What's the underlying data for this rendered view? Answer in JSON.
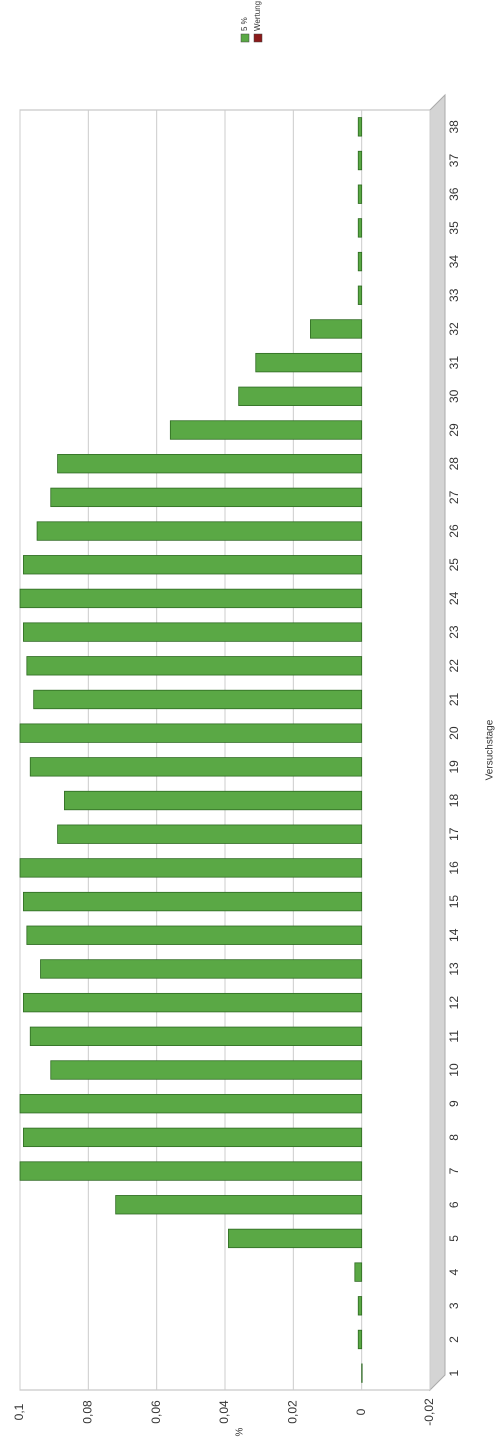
{
  "chart_data": {
    "type": "bar",
    "x_label": "Versuchstage",
    "y_label": "%",
    "categories": [
      "1",
      "2",
      "3",
      "4",
      "5",
      "6",
      "7",
      "8",
      "9",
      "10",
      "11",
      "12",
      "13",
      "14",
      "15",
      "16",
      "17",
      "18",
      "19",
      "20",
      "21",
      "22",
      "23",
      "24",
      "25",
      "26",
      "27",
      "28",
      "29",
      "30",
      "31",
      "32",
      "33",
      "34",
      "35",
      "36",
      "37",
      "38"
    ],
    "series": [
      {
        "name": "5 %",
        "color": "#5aa845",
        "values": [
          0,
          0.001,
          0.001,
          0.002,
          0.039,
          0.072,
          0.1,
          0.099,
          0.1,
          0.091,
          0.097,
          0.099,
          0.094,
          0.098,
          0.099,
          0.1,
          0.089,
          0.087,
          0.097,
          0.1,
          0.096,
          0.098,
          0.099,
          0.1,
          0.099,
          0.095,
          0.091,
          0.089,
          0.056,
          0.036,
          0.031,
          0.015,
          0.001,
          0.001,
          0.001,
          0.001,
          0.001,
          0.001
        ]
      },
      {
        "name": "Wertung",
        "color": "#8b1a1a",
        "values": [
          null,
          null,
          null,
          null,
          null,
          null,
          null,
          null,
          null,
          null,
          null,
          null,
          null,
          null,
          null,
          null,
          null,
          null,
          null,
          null,
          null,
          null,
          null,
          null,
          null,
          null,
          null,
          null,
          null,
          null,
          null,
          null,
          null,
          null,
          null,
          null,
          null,
          null
        ]
      }
    ],
    "ylim": [
      -0.02,
      0.1
    ],
    "yticks": [
      {
        "value": -0.02,
        "label": "-0,02"
      },
      0,
      {
        "value": 0.02,
        "label": "0,02"
      },
      {
        "value": 0.04,
        "label": "0,04"
      },
      {
        "value": 0.06,
        "label": "0,06"
      },
      {
        "value": 0.08,
        "label": "0,08"
      },
      {
        "value": 0.1,
        "label": "0,1"
      }
    ],
    "grid": true
  }
}
